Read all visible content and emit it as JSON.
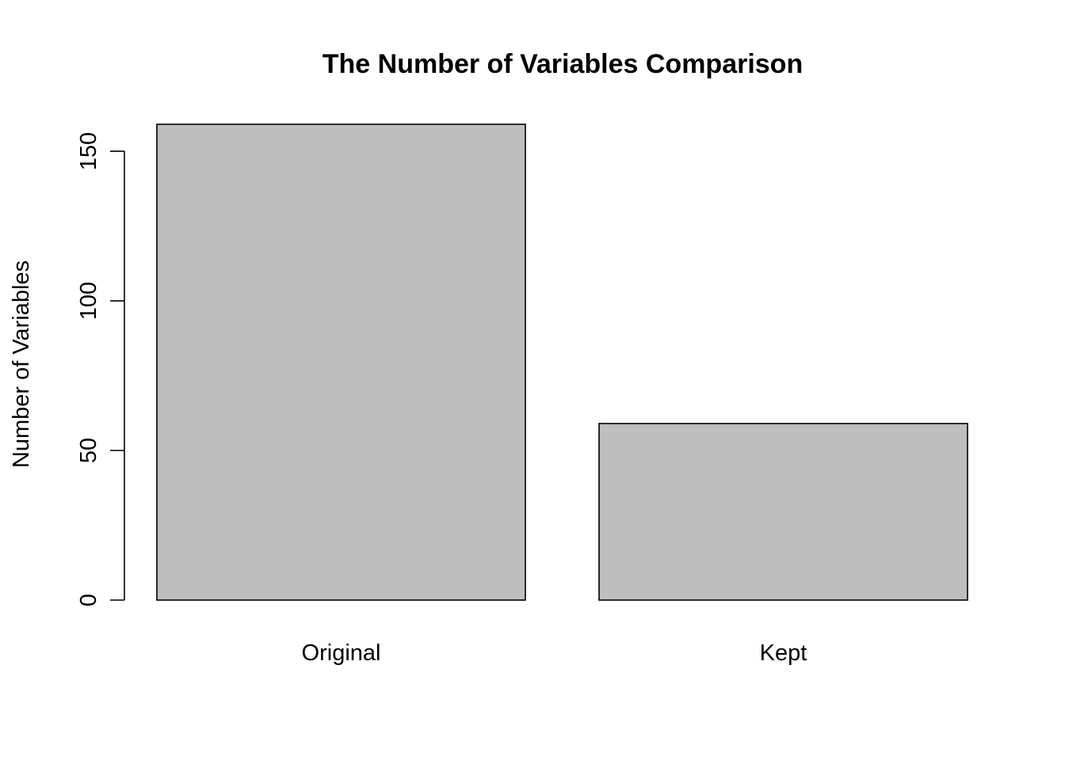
{
  "chart_data": {
    "type": "bar",
    "title": "The Number of Variables Comparison",
    "xlabel": "",
    "ylabel": "Number of Variables",
    "categories": [
      "Original",
      "Kept"
    ],
    "values": [
      159,
      59
    ],
    "ylim": [
      0,
      159
    ],
    "yticks": [
      0,
      50,
      100,
      150
    ],
    "bar_color": "#bebebe",
    "border_color": "#000000",
    "grid": false,
    "legend": "none"
  }
}
